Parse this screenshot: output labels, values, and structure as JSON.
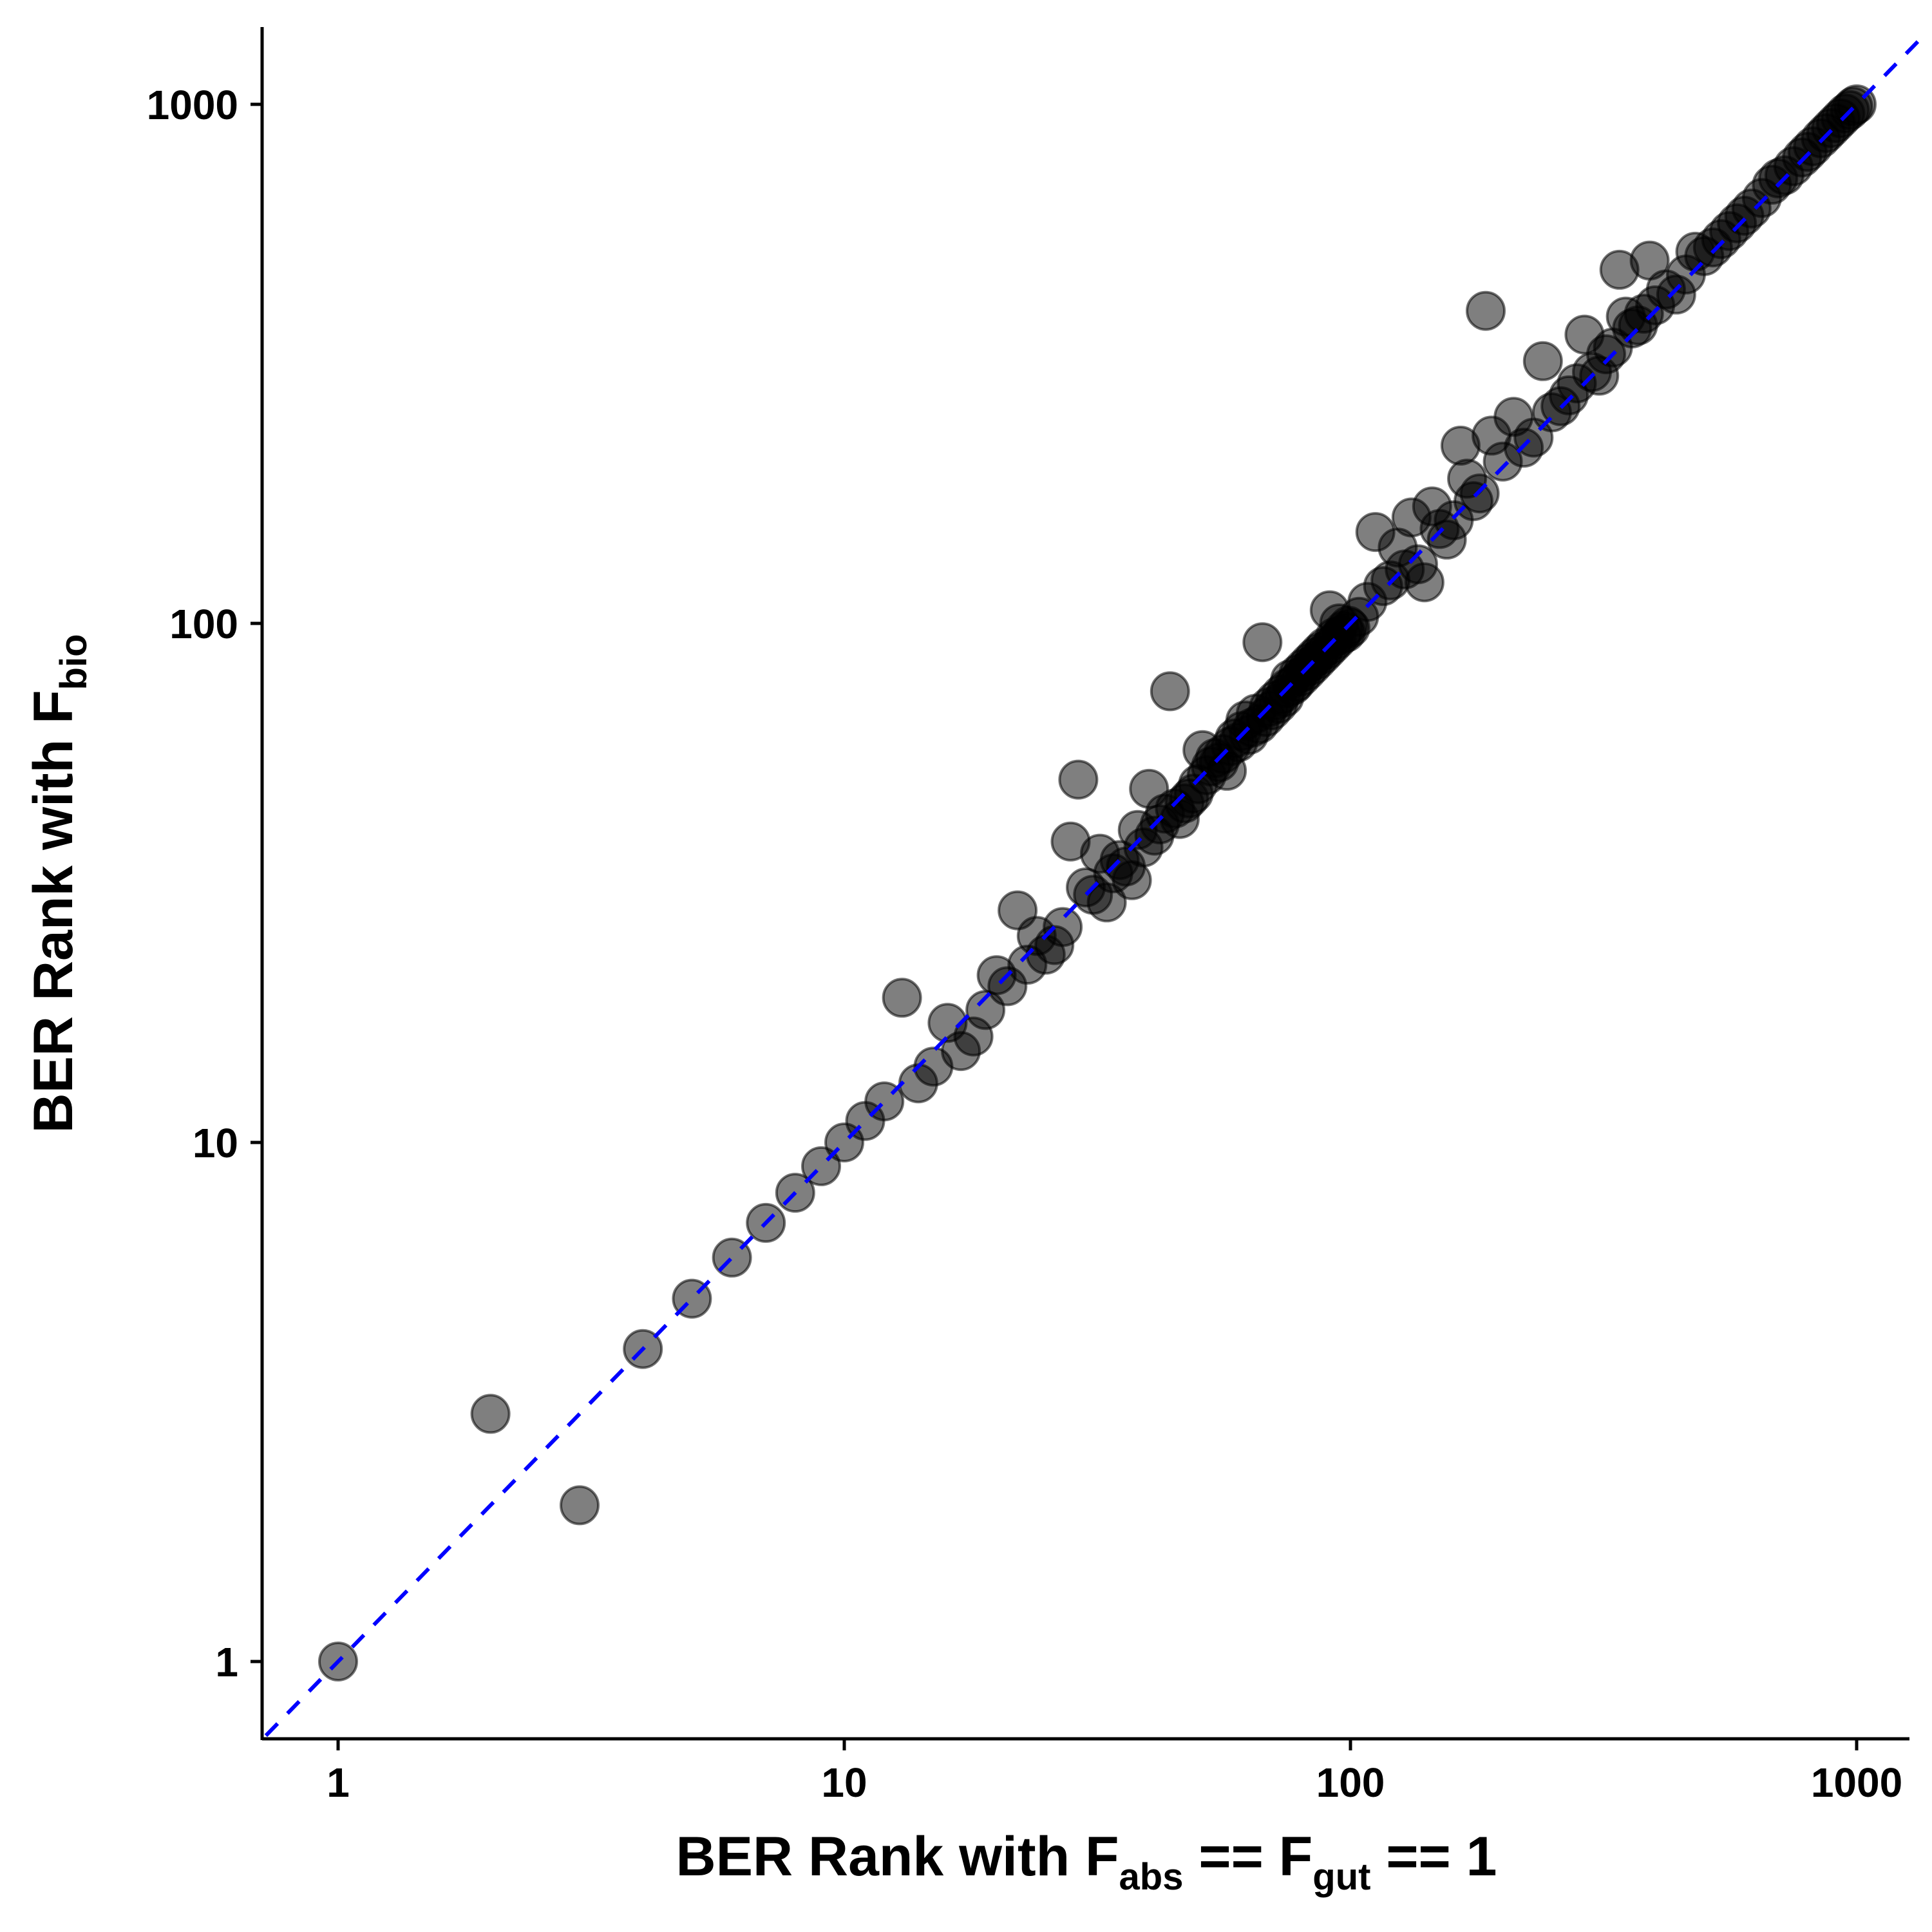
{
  "chart_data": {
    "type": "scatter",
    "scale": {
      "x": "log10",
      "y": "log10"
    },
    "xlim": [
      0.72,
      1380
    ],
    "ylim": [
      0.72,
      1380
    ],
    "grid": false,
    "legend": "none",
    "xlabel": {
      "main": "BER Rank with F",
      "sub1": "abs",
      "mid": " == F",
      "sub2": "gut",
      "tail": " == 1"
    },
    "ylabel": {
      "main": "BER Rank with F",
      "sub": "bio"
    },
    "x_ticks": [
      {
        "value": 1,
        "label": "1"
      },
      {
        "value": 10,
        "label": "10"
      },
      {
        "value": 100,
        "label": "100"
      },
      {
        "value": 1000,
        "label": "1000"
      }
    ],
    "y_ticks": [
      {
        "value": 1,
        "label": "1"
      },
      {
        "value": 10,
        "label": "10"
      },
      {
        "value": 100,
        "label": "100"
      },
      {
        "value": 1000,
        "label": "1000"
      }
    ],
    "reference_line": {
      "slope": 1,
      "intercept": 0,
      "color": "#0000ff",
      "style": "dashed"
    },
    "point_color": "#000000",
    "point_opacity": 0.5,
    "points": [
      [
        1,
        1
      ],
      [
        2,
        3
      ],
      [
        3,
        2
      ],
      [
        4,
        4
      ],
      [
        5,
        5
      ],
      [
        6,
        6
      ],
      [
        7,
        7
      ],
      [
        8,
        8
      ],
      [
        9,
        9
      ],
      [
        10,
        10
      ],
      [
        11,
        11
      ],
      [
        12,
        12
      ],
      [
        13,
        19
      ],
      [
        14,
        13
      ],
      [
        15,
        14
      ],
      [
        16,
        17
      ],
      [
        17,
        15
      ],
      [
        18,
        16
      ],
      [
        19,
        18
      ],
      [
        20,
        21
      ],
      [
        21,
        20
      ],
      [
        22,
        28
      ],
      [
        23,
        22
      ],
      [
        24,
        25
      ],
      [
        25,
        23
      ],
      [
        26,
        24
      ],
      [
        27,
        26
      ],
      [
        28,
        38
      ],
      [
        29,
        50
      ],
      [
        30,
        31
      ],
      [
        31,
        30
      ],
      [
        32,
        36
      ],
      [
        33,
        29
      ],
      [
        34,
        33
      ],
      [
        35,
        35
      ],
      [
        36,
        34
      ],
      [
        37,
        32
      ],
      [
        38,
        40
      ],
      [
        39,
        37
      ],
      [
        40,
        48
      ],
      [
        41,
        39
      ],
      [
        42,
        41
      ],
      [
        43,
        43
      ],
      [
        44,
        74
      ],
      [
        45,
        44
      ],
      [
        46,
        42
      ],
      [
        47,
        45
      ],
      [
        48,
        46
      ],
      [
        49,
        47
      ],
      [
        50,
        49
      ],
      [
        51,
        57
      ],
      [
        52,
        51
      ],
      [
        53,
        53
      ],
      [
        54,
        55
      ],
      [
        55,
        54
      ],
      [
        56,
        56
      ],
      [
        57,
        52
      ],
      [
        58,
        58
      ],
      [
        59,
        60
      ],
      [
        60,
        59
      ],
      [
        61,
        62
      ],
      [
        62,
        65
      ],
      [
        63,
        61
      ],
      [
        64,
        63
      ],
      [
        65,
        67
      ],
      [
        66,
        64
      ],
      [
        67,
        92
      ],
      [
        68,
        66
      ],
      [
        69,
        69
      ],
      [
        70,
        68
      ],
      [
        71,
        71
      ],
      [
        72,
        70
      ],
      [
        73,
        73
      ],
      [
        74,
        72
      ],
      [
        75,
        75
      ],
      [
        76,
        78
      ],
      [
        77,
        76
      ],
      [
        78,
        77
      ],
      [
        79,
        80
      ],
      [
        80,
        79
      ],
      [
        81,
        82
      ],
      [
        82,
        81
      ],
      [
        83,
        84
      ],
      [
        84,
        83
      ],
      [
        85,
        86
      ],
      [
        86,
        85
      ],
      [
        87,
        88
      ],
      [
        88,
        87
      ],
      [
        89,
        90
      ],
      [
        90,
        89
      ],
      [
        91,
        106
      ],
      [
        92,
        91
      ],
      [
        93,
        94
      ],
      [
        94,
        93
      ],
      [
        95,
        100
      ],
      [
        96,
        95
      ],
      [
        97,
        97
      ],
      [
        98,
        96
      ],
      [
        99,
        99
      ],
      [
        100,
        98
      ],
      [
        104,
        103
      ],
      [
        108,
        110
      ],
      [
        112,
        150
      ],
      [
        116,
        118
      ],
      [
        120,
        121
      ],
      [
        124,
        140
      ],
      [
        128,
        127
      ],
      [
        132,
        160
      ],
      [
        136,
        130
      ],
      [
        140,
        120
      ],
      [
        145,
        168
      ],
      [
        150,
        152
      ],
      [
        155,
        145
      ],
      [
        160,
        158
      ],
      [
        165,
        220
      ],
      [
        170,
        190
      ],
      [
        175,
        172
      ],
      [
        180,
        178
      ],
      [
        185,
        400
      ],
      [
        190,
        230
      ],
      [
        200,
        205
      ],
      [
        210,
        250
      ],
      [
        220,
        218
      ],
      [
        230,
        228
      ],
      [
        240,
        320
      ],
      [
        250,
        255
      ],
      [
        260,
        262
      ],
      [
        270,
        275
      ],
      [
        280,
        290
      ],
      [
        290,
        360
      ],
      [
        300,
        305
      ],
      [
        310,
        300
      ],
      [
        320,
        330
      ],
      [
        330,
        340
      ],
      [
        340,
        480
      ],
      [
        350,
        390
      ],
      [
        360,
        370
      ],
      [
        370,
        375
      ],
      [
        380,
        395
      ],
      [
        390,
        500
      ],
      [
        400,
        410
      ],
      [
        420,
        440
      ],
      [
        440,
        430
      ],
      [
        460,
        470
      ],
      [
        480,
        520
      ],
      [
        500,
        510
      ],
      [
        520,
        530
      ],
      [
        540,
        550
      ],
      [
        560,
        570
      ],
      [
        580,
        590
      ],
      [
        600,
        610
      ],
      [
        620,
        630
      ],
      [
        650,
        660
      ],
      [
        680,
        700
      ],
      [
        700,
        720
      ],
      [
        720,
        730
      ],
      [
        750,
        760
      ],
      [
        780,
        790
      ],
      [
        800,
        810
      ],
      [
        820,
        830
      ],
      [
        850,
        860
      ],
      [
        870,
        880
      ],
      [
        890,
        900
      ],
      [
        910,
        920
      ],
      [
        930,
        940
      ],
      [
        950,
        960
      ],
      [
        970,
        975
      ],
      [
        985,
        990
      ],
      [
        1000,
        1000
      ]
    ]
  }
}
